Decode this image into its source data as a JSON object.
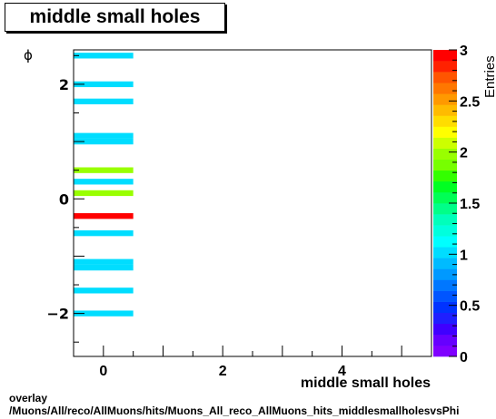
{
  "chart_data": {
    "type": "heatmap",
    "title": "middle small holes",
    "xlabel": "middle small holes",
    "ylabel": "ϕ",
    "zlabel": "Entries",
    "xlim": [
      -0.5,
      5.5
    ],
    "ylim": [
      -2.75,
      2.6
    ],
    "zlim": [
      0,
      3
    ],
    "x_ticks": [
      0,
      2,
      4
    ],
    "y_ticks": [
      -2,
      0,
      2
    ],
    "z_ticks": [
      "0",
      "0.5",
      "1",
      "1.5",
      "2",
      "2.5",
      "3"
    ],
    "bin_width_y": 0.1,
    "cells": [
      {
        "x": [
          -0.5,
          0.5
        ],
        "y": 2.5,
        "v": 1
      },
      {
        "x": [
          -0.5,
          0.5
        ],
        "y": 2.0,
        "v": 1
      },
      {
        "x": [
          -0.5,
          0.5
        ],
        "y": 1.7,
        "v": 1
      },
      {
        "x": [
          -0.5,
          0.5
        ],
        "y": 1.1,
        "v": 1
      },
      {
        "x": [
          -0.5,
          0.5
        ],
        "y": 1.0,
        "v": 1
      },
      {
        "x": [
          -0.5,
          0.5
        ],
        "y": 0.5,
        "v": 2
      },
      {
        "x": [
          -0.5,
          0.5
        ],
        "y": 0.3,
        "v": 1
      },
      {
        "x": [
          -0.5,
          0.5
        ],
        "y": 0.1,
        "v": 2
      },
      {
        "x": [
          -0.5,
          0.5
        ],
        "y": -0.3,
        "v": 3
      },
      {
        "x": [
          -0.5,
          0.5
        ],
        "y": -0.6,
        "v": 1
      },
      {
        "x": [
          -0.5,
          0.5
        ],
        "y": -1.1,
        "v": 1
      },
      {
        "x": [
          -0.5,
          0.5
        ],
        "y": -1.2,
        "v": 1
      },
      {
        "x": [
          -0.5,
          0.5
        ],
        "y": -1.6,
        "v": 1
      },
      {
        "x": [
          -0.5,
          0.5
        ],
        "y": -2.0,
        "v": 1
      }
    ],
    "palette": [
      "#7f00ff",
      "#6600ff",
      "#3f00ff",
      "#1f1fff",
      "#0033ff",
      "#0055ff",
      "#0077ff",
      "#0099ff",
      "#00bbff",
      "#00ddff",
      "#00ffff",
      "#00ffdd",
      "#00ffbb",
      "#00ff88",
      "#00ff55",
      "#00ff22",
      "#33ff00",
      "#77ff00",
      "#99ff00",
      "#ccff00",
      "#ffff00",
      "#ffdd00",
      "#ffbb00",
      "#ff9900",
      "#ff7700",
      "#ff5500",
      "#ff2200",
      "#ff0000"
    ]
  },
  "footer": {
    "line1": "overlay",
    "line2": "/Muons/All/reco/AllMuons/hits/Muons_All_reco_AllMuons_hits_middlesmallholesvsPhi"
  }
}
